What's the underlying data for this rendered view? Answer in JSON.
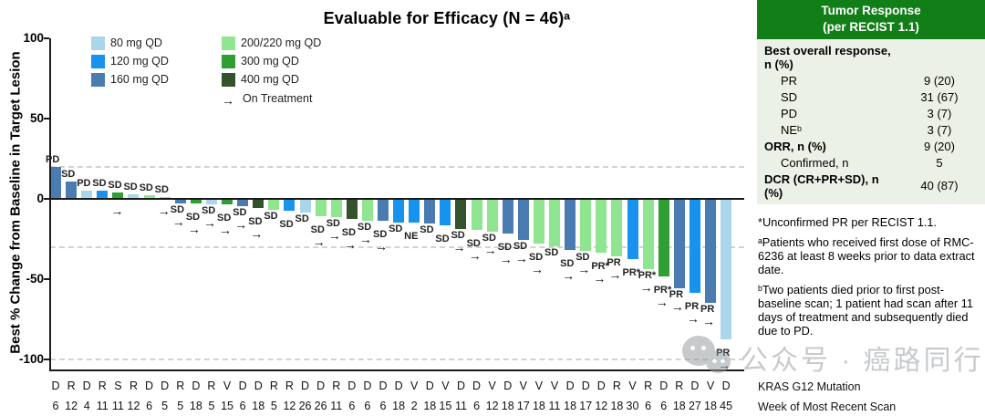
{
  "chart": {
    "title": "Evaluable for Efficacy (N = 46)ᵃ",
    "y_axis_title": "Best % Change from Baseline in Target Lesion",
    "y_ticks": [
      100,
      50,
      0,
      -50,
      -100
    ],
    "mutation_row_label": "KRAS G12 Mutation",
    "week_row_label": "Week of Most Recent Scan"
  },
  "legend": {
    "items": [
      {
        "label": "80 mg QD",
        "dose": "80",
        "color": "#a9d6ea"
      },
      {
        "label": "120 mg QD",
        "dose": "120",
        "color": "#1793ef"
      },
      {
        "label": "160 mg QD",
        "dose": "160",
        "color": "#4b7cb1"
      },
      {
        "label": "200/220 mg QD",
        "dose": "200/220",
        "color": "#90e690"
      },
      {
        "label": "300 mg QD",
        "dose": "300",
        "color": "#2f9e33"
      },
      {
        "label": "400 mg QD",
        "dose": "400",
        "color": "#34522c"
      }
    ],
    "on_treatment_label": "On Treatment",
    "arrow_glyph": "→"
  },
  "chart_data": {
    "type": "bar",
    "title": "Evaluable for Efficacy (N = 46)",
    "ylabel": "Best % Change from Baseline in Target Lesion",
    "ylim": [
      -100,
      100
    ],
    "reference_lines": [
      20,
      -30,
      -100
    ],
    "x_row_labels": {
      "row1": "KRAS G12 Mutation",
      "row2": "Week of Most Recent Scan"
    },
    "bars": [
      {
        "dose": "160",
        "value": 20,
        "response": "PD",
        "on_treatment": false,
        "mutation": "D",
        "week": 6
      },
      {
        "dose": "160",
        "value": 11,
        "response": "SD",
        "on_treatment": false,
        "mutation": "R",
        "week": 12
      },
      {
        "dose": "80",
        "value": 5,
        "response": "PD",
        "on_treatment": false,
        "mutation": "D",
        "week": 4
      },
      {
        "dose": "120",
        "value": 5,
        "response": "SD",
        "on_treatment": false,
        "mutation": "R",
        "week": 11
      },
      {
        "dose": "300",
        "value": 4,
        "response": "SD",
        "on_treatment": true,
        "mutation": "S",
        "week": 11
      },
      {
        "dose": "80",
        "value": 3,
        "response": "SD",
        "on_treatment": false,
        "mutation": "R",
        "week": 12
      },
      {
        "dose": "200/220",
        "value": 2,
        "response": "SD",
        "on_treatment": false,
        "mutation": "D",
        "week": 6
      },
      {
        "dose": "200/220",
        "value": 1,
        "response": "SD",
        "on_treatment": true,
        "mutation": "D",
        "week": 5
      },
      {
        "dose": "160",
        "value": -2,
        "response": "SD",
        "on_treatment": true,
        "mutation": "R",
        "week": 5
      },
      {
        "dose": "300",
        "value": -2,
        "response": "SD",
        "on_treatment": true,
        "mutation": "D",
        "week": 18
      },
      {
        "dose": "80",
        "value": -3,
        "response": "SD",
        "on_treatment": true,
        "mutation": "R",
        "week": 5
      },
      {
        "dose": "300",
        "value": -3,
        "response": "SD",
        "on_treatment": true,
        "mutation": "V",
        "week": 15
      },
      {
        "dose": "160",
        "value": -4,
        "response": "SD",
        "on_treatment": true,
        "mutation": "D",
        "week": 6
      },
      {
        "dose": "400",
        "value": -5,
        "response": "SD",
        "on_treatment": true,
        "mutation": "D",
        "week": 18
      },
      {
        "dose": "200/220",
        "value": -6,
        "response": "SD",
        "on_treatment": false,
        "mutation": "R",
        "week": 5
      },
      {
        "dose": "120",
        "value": -7,
        "response": "SD",
        "on_treatment": false,
        "mutation": "R",
        "week": 12
      },
      {
        "dose": "80",
        "value": -8,
        "response": "SD",
        "on_treatment": false,
        "mutation": "D",
        "week": 26
      },
      {
        "dose": "200/220",
        "value": -10,
        "response": "SD",
        "on_treatment": true,
        "mutation": "D",
        "week": 26
      },
      {
        "dose": "200/220",
        "value": -11,
        "response": "SD",
        "on_treatment": true,
        "mutation": "R",
        "week": 11
      },
      {
        "dose": "400",
        "value": -12,
        "response": "SD",
        "on_treatment": true,
        "mutation": "D",
        "week": 6
      },
      {
        "dose": "200/220",
        "value": -13,
        "response": "SD",
        "on_treatment": true,
        "mutation": "D",
        "week": 6
      },
      {
        "dose": "160",
        "value": -13,
        "response": "SD",
        "on_treatment": true,
        "mutation": "D",
        "week": 6
      },
      {
        "dose": "120",
        "value": -14,
        "response": "SD",
        "on_treatment": false,
        "mutation": "D",
        "week": 18
      },
      {
        "dose": "120",
        "value": -14,
        "response": "NE",
        "on_treatment": false,
        "mutation": "V",
        "week": 2
      },
      {
        "dose": "160",
        "value": -15,
        "response": "SD",
        "on_treatment": false,
        "mutation": "D",
        "week": 18
      },
      {
        "dose": "120",
        "value": -16,
        "response": "SD",
        "on_treatment": false,
        "mutation": "V",
        "week": 15
      },
      {
        "dose": "400",
        "value": -18,
        "response": "SD",
        "on_treatment": true,
        "mutation": "D",
        "week": 11
      },
      {
        "dose": "200/220",
        "value": -19,
        "response": "SD",
        "on_treatment": true,
        "mutation": "D",
        "week": 6
      },
      {
        "dose": "200/220",
        "value": -20,
        "response": "SD",
        "on_treatment": true,
        "mutation": "V",
        "week": 12
      },
      {
        "dose": "160",
        "value": -21,
        "response": "SD",
        "on_treatment": true,
        "mutation": "D",
        "week": 18
      },
      {
        "dose": "160",
        "value": -25,
        "response": "SD",
        "on_treatment": true,
        "mutation": "V",
        "week": 17
      },
      {
        "dose": "200/220",
        "value": -27,
        "response": "SD",
        "on_treatment": true,
        "mutation": "V",
        "week": 18
      },
      {
        "dose": "200/220",
        "value": -29,
        "response": "SD",
        "on_treatment": false,
        "mutation": "V",
        "week": 11
      },
      {
        "dose": "160",
        "value": -31,
        "response": "SD",
        "on_treatment": true,
        "mutation": "D",
        "week": 18
      },
      {
        "dose": "200/220",
        "value": -32,
        "response": "SD",
        "on_treatment": true,
        "mutation": "D",
        "week": 17
      },
      {
        "dose": "200/220",
        "value": -33,
        "response": "PR*",
        "on_treatment": true,
        "mutation": "D",
        "week": 12
      },
      {
        "dose": "200/220",
        "value": -35,
        "response": "PR",
        "on_treatment": true,
        "mutation": "R",
        "week": 18
      },
      {
        "dose": "120",
        "value": -37,
        "response": "PR*",
        "on_treatment": false,
        "mutation": "V",
        "week": 30
      },
      {
        "dose": "200/220",
        "value": -43,
        "response": "PR*",
        "on_treatment": true,
        "mutation": "R",
        "week": 6
      },
      {
        "dose": "300",
        "value": -48,
        "response": "PR*",
        "on_treatment": true,
        "mutation": "D",
        "week": 6
      },
      {
        "dose": "160",
        "value": -55,
        "response": "PR",
        "on_treatment": true,
        "mutation": "R",
        "week": 18
      },
      {
        "dose": "120",
        "value": -58,
        "response": "PR",
        "on_treatment": true,
        "mutation": "D",
        "week": 27
      },
      {
        "dose": "160",
        "value": -64,
        "response": "PR",
        "on_treatment": true,
        "mutation": "V",
        "week": 18
      },
      {
        "dose": "80",
        "value": -87,
        "response": "PR",
        "on_treatment": true,
        "mutation": "D",
        "week": 45
      }
    ]
  },
  "response_table": {
    "header_line1": "Tumor Response",
    "header_line2": "(per RECIST 1.1)",
    "header_color": "#117e17",
    "rows": [
      {
        "label": "Best overall response, n (%)",
        "value": "",
        "style": "bold"
      },
      {
        "label": "PR",
        "value": "9 (20)",
        "style": "indent"
      },
      {
        "label": "SD",
        "value": "31 (67)",
        "style": "indent"
      },
      {
        "label": "PD",
        "value": "3 (7)",
        "style": "indent"
      },
      {
        "label": "NEᵇ",
        "value": "3 (7)",
        "style": "indent"
      },
      {
        "label": "ORR, n (%)",
        "value": "9 (20)",
        "style": "bold"
      },
      {
        "label": "Confirmed, n",
        "value": "5",
        "style": "indent"
      },
      {
        "label": "DCR (CR+PR+SD), n (%)",
        "value": "40 (87)",
        "style": "bold"
      }
    ]
  },
  "footnotes": [
    "*Unconfirmed PR per RECIST 1.1.",
    "ᵃPatients who received first dose of RMC-6236 at least 8 weeks prior to data extract date.",
    "ᵇTwo patients died prior to first post-baseline scan; 1 patient had scan after 11 days of treatment and subsequently died due to PD."
  ],
  "watermark": {
    "text": "公众号 · 癌路同行"
  }
}
